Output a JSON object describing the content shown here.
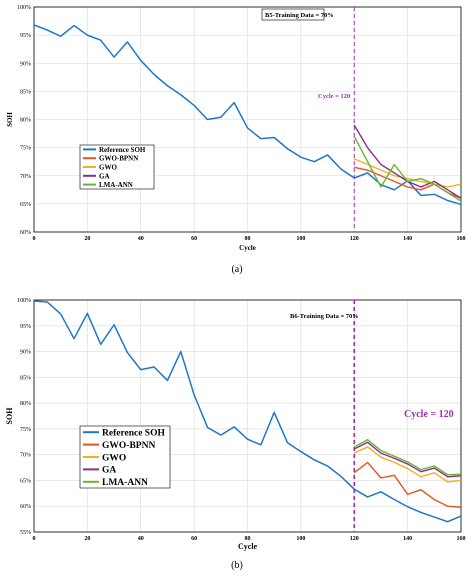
{
  "colors": {
    "reference": "#1f77c8",
    "gwo_bpnn": "#e8541c",
    "gwo": "#f2b01e",
    "ga": "#8e2a8e",
    "lma_ann": "#63b832",
    "cycle_line": "#9b2fae",
    "grid": "#d9d9d9"
  },
  "chart_data": [
    {
      "type": "line",
      "panel_label": "(a)",
      "annotation": "B5-Training Data = 70%",
      "cycle_label": "Cycle = 120",
      "cycle_x": 120,
      "xlabel": "Cycle",
      "ylabel": "SOH",
      "xlim": [
        0,
        160
      ],
      "ylim": [
        60,
        100
      ],
      "xticks": [
        0,
        20,
        40,
        60,
        80,
        100,
        120,
        140,
        160
      ],
      "yticks": [
        60,
        65,
        70,
        75,
        80,
        85,
        90,
        95,
        100
      ],
      "ytick_labels": [
        "60%",
        "65%",
        "70%",
        "75%",
        "80%",
        "85%",
        "90%",
        "95%",
        "100%"
      ],
      "grid": true,
      "legend_position": "center-left",
      "series": [
        {
          "name": "Reference SOH",
          "color_key": "reference",
          "x": [
            0,
            5,
            10,
            15,
            20,
            25,
            30,
            35,
            40,
            45,
            50,
            55,
            60,
            65,
            70,
            75,
            80,
            85,
            90,
            95,
            100,
            105,
            110,
            115,
            120,
            125,
            130,
            135,
            140,
            145,
            150,
            155,
            160
          ],
          "y": [
            96.8,
            95.9,
            94.8,
            96.7,
            95.0,
            94.1,
            91.1,
            93.8,
            90.5,
            88.0,
            86.0,
            84.4,
            82.5,
            80.0,
            80.4,
            83.0,
            78.5,
            76.6,
            76.8,
            74.8,
            73.3,
            72.5,
            73.7,
            71.2,
            69.6,
            70.5,
            68.4,
            67.5,
            69.1,
            66.5,
            66.7,
            65.6,
            64.9
          ]
        },
        {
          "name": "GWO-BPNN",
          "color_key": "gwo_bpnn",
          "x": [
            120,
            125,
            130,
            135,
            140,
            145,
            150,
            155,
            160
          ],
          "y": [
            71.5,
            71.0,
            70.0,
            69.0,
            68.0,
            67.5,
            68.5,
            67.0,
            66.0
          ]
        },
        {
          "name": "GWO",
          "color_key": "gwo",
          "x": [
            120,
            125,
            130,
            135,
            140,
            145,
            150,
            155,
            160
          ],
          "y": [
            73.0,
            72.0,
            71.0,
            70.0,
            69.5,
            69.0,
            68.5,
            68.0,
            68.5
          ]
        },
        {
          "name": "GA",
          "color_key": "ga",
          "x": [
            120,
            125,
            130,
            135,
            140,
            145,
            150,
            155,
            160
          ],
          "y": [
            79.0,
            75.0,
            72.0,
            70.5,
            69.0,
            68.0,
            69.0,
            67.5,
            66.0
          ]
        },
        {
          "name": "LMA-ANN",
          "color_key": "lma_ann",
          "x": [
            120,
            125,
            130,
            135,
            140,
            145,
            150,
            155,
            160
          ],
          "y": [
            77.0,
            72.5,
            68.0,
            72.0,
            69.0,
            69.5,
            68.5,
            67.0,
            65.5
          ]
        }
      ]
    },
    {
      "type": "line",
      "panel_label": "(b)",
      "annotation": "B6-Training Data = 70%",
      "cycle_label": "Cycle = 120",
      "cycle_x": 120,
      "xlabel": "Cycle",
      "ylabel": "SOH",
      "xlim": [
        0,
        160
      ],
      "ylim": [
        55,
        100
      ],
      "xticks": [
        0,
        20,
        40,
        60,
        80,
        100,
        120,
        140,
        160
      ],
      "yticks": [
        55,
        60,
        65,
        70,
        75,
        80,
        85,
        90,
        95,
        100
      ],
      "ytick_labels": [
        "55%",
        "60%",
        "65%",
        "70%",
        "75%",
        "80%",
        "85%",
        "90%",
        "95%",
        "100%"
      ],
      "grid": true,
      "legend_position": "bottom-left",
      "series": [
        {
          "name": "Reference SOH",
          "color_key": "reference",
          "x": [
            0,
            5,
            10,
            15,
            20,
            25,
            30,
            35,
            40,
            45,
            50,
            55,
            60,
            65,
            70,
            75,
            80,
            85,
            90,
            95,
            100,
            105,
            110,
            115,
            120,
            125,
            130,
            135,
            140,
            145,
            150,
            155,
            160
          ],
          "y": [
            99.8,
            99.6,
            97.3,
            92.5,
            97.4,
            91.4,
            95.2,
            89.8,
            86.5,
            87.0,
            84.4,
            90.0,
            81.6,
            75.3,
            73.8,
            75.4,
            73.0,
            71.9,
            78.2,
            72.3,
            70.6,
            69.0,
            67.8,
            65.8,
            63.3,
            61.8,
            62.8,
            61.3,
            59.9,
            58.8,
            57.9,
            57.0,
            58.1
          ]
        },
        {
          "name": "GWO-BPNN",
          "color_key": "gwo_bpnn",
          "x": [
            120,
            125,
            130,
            135,
            140,
            145,
            150,
            155,
            160
          ],
          "y": [
            66.5,
            68.5,
            65.5,
            66.0,
            62.3,
            63.2,
            61.3,
            60.0,
            59.8
          ]
        },
        {
          "name": "GWO",
          "color_key": "gwo",
          "x": [
            120,
            125,
            130,
            135,
            140,
            145,
            150,
            155,
            160
          ],
          "y": [
            70.3,
            71.5,
            69.5,
            68.5,
            67.3,
            65.7,
            66.5,
            64.7,
            65.0
          ]
        },
        {
          "name": "GA",
          "color_key": "ga",
          "x": [
            120,
            125,
            130,
            135,
            140,
            145,
            150,
            155,
            160
          ],
          "y": [
            71.1,
            72.4,
            70.3,
            69.3,
            68.2,
            66.7,
            67.4,
            65.7,
            65.9
          ]
        },
        {
          "name": "LMA-ANN",
          "color_key": "lma_ann",
          "x": [
            120,
            125,
            130,
            135,
            140,
            145,
            150,
            155,
            160
          ],
          "y": [
            71.5,
            72.9,
            70.8,
            69.7,
            68.6,
            67.1,
            67.8,
            66.1,
            66.2
          ]
        }
      ]
    }
  ]
}
